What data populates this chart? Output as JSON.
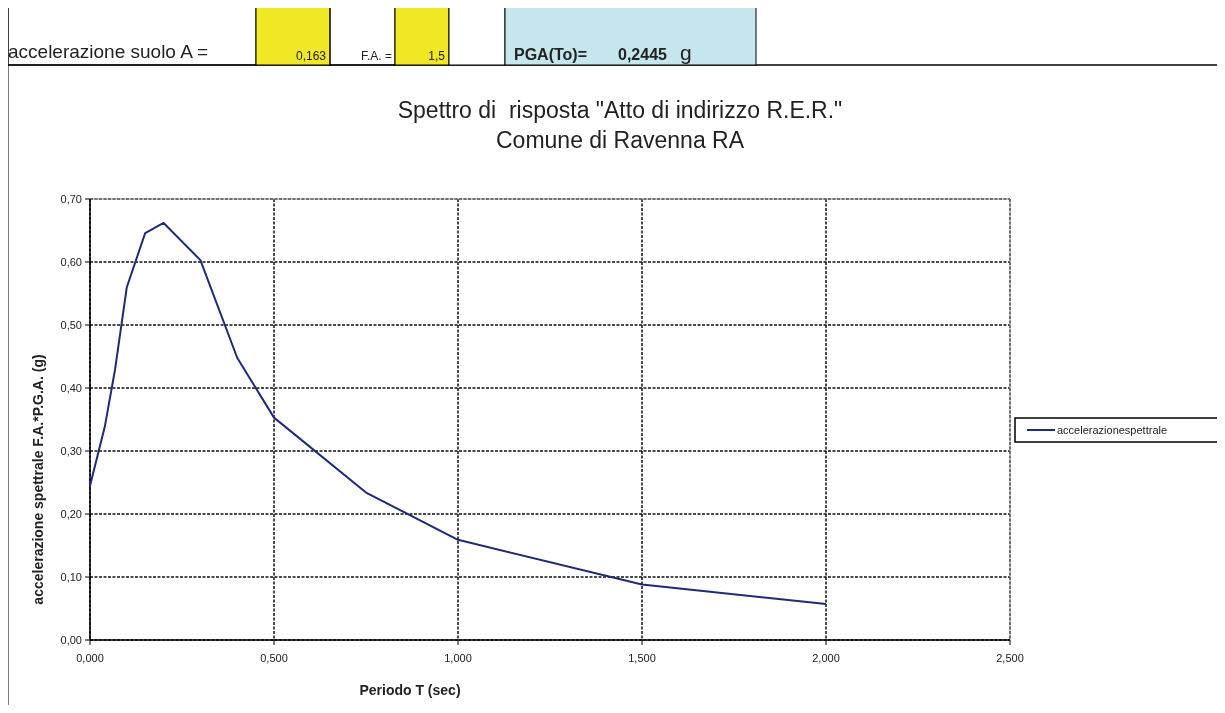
{
  "chart_data": {
    "type": "line",
    "title": "Spettro di  risposta \"Atto di indirizzo R.E.R.\"\nComune di Ravenna RA",
    "xlabel": "Periodo T (sec)",
    "ylabel": "accelerazione spettrale F.A.*P.G.A. (g)",
    "annotations": [
      "accelerazione suolo A =",
      "0,163",
      "F.A. =",
      "1,5",
      "PGA(To)=",
      "0,2445",
      "g"
    ],
    "series": [
      {
        "name": "accelerazionespettrale",
        "color": "#1f2a78",
        "x": [
          0,
          0.04,
          0.068,
          0.1,
          0.15,
          0.2,
          0.3,
          0.4,
          0.5,
          0.75,
          1.0,
          1.5,
          2.0
        ],
        "values": [
          0.245,
          0.338,
          0.429,
          0.56,
          0.646,
          0.662,
          0.603,
          0.448,
          0.353,
          0.234,
          0.159,
          0.088,
          0.057
        ]
      }
    ],
    "xlim": [
      0,
      2.5
    ],
    "xticks": [
      {
        "value": 0,
        "label": "0,000"
      },
      {
        "value": 0.5,
        "label": "0,500"
      },
      {
        "value": 1,
        "label": "1,000"
      },
      {
        "value": 1.5,
        "label": "1,500"
      },
      {
        "value": 2,
        "label": "2,000"
      },
      {
        "value": 2.5,
        "label": "2,500"
      }
    ],
    "ylim": [
      0,
      0.7
    ],
    "yticks": [
      {
        "value": 0,
        "label": "0,00"
      },
      {
        "value": 0.1,
        "label": "0,10"
      },
      {
        "value": 0.2,
        "label": "0,20"
      },
      {
        "value": 0.3,
        "label": "0,30"
      },
      {
        "value": 0.4,
        "label": "0,40"
      },
      {
        "value": 0.5,
        "label": "0,50"
      },
      {
        "value": 0.6,
        "label": "0,60"
      },
      {
        "value": 0.7,
        "label": "0,70"
      }
    ],
    "grid": true,
    "legend": "right",
    "line_style": "solid",
    "marker": "none"
  }
}
